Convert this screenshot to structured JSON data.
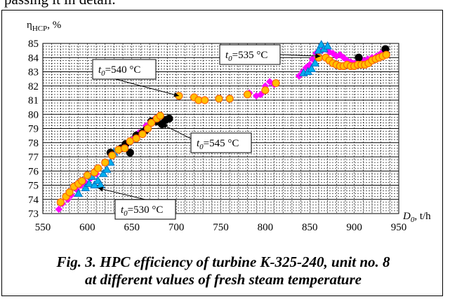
{
  "page_text": "passing it in detail.",
  "caption": {
    "line1": "Fig. 3. HPC efficiency of turbine K-325-240, unit no. 8",
    "line2": "at different values of fresh steam temperature"
  },
  "chart_data": {
    "type": "scatter",
    "title": "",
    "ylabel": "η_HCP, %",
    "xlabel": "D_0, t/h",
    "xlim": [
      550,
      950
    ],
    "ylim": [
      73,
      85
    ],
    "x_ticks": [
      550,
      600,
      650,
      700,
      750,
      800,
      850,
      900,
      950
    ],
    "y_ticks": [
      73,
      74,
      75,
      76,
      77,
      78,
      79,
      80,
      81,
      82,
      83,
      84,
      85
    ],
    "grid": true,
    "annotations": [
      {
        "text": "t0=540 °C",
        "t": "t",
        "sub": "0",
        "rest": "=540 °C",
        "at": [
          703,
          81.3
        ]
      },
      {
        "text": "t0=535 °C",
        "t": "t",
        "sub": "0",
        "rest": "=535 °C",
        "at": [
          862,
          84.1
        ]
      },
      {
        "text": "t0=545 °C",
        "t": "t",
        "sub": "0",
        "rest": "=545 °C",
        "at": [
          684,
          79.3
        ]
      },
      {
        "text": "t0=530 °C",
        "t": "t",
        "sub": "0",
        "rest": "=530 °C",
        "at": [
          612,
          74.8
        ]
      }
    ],
    "series": [
      {
        "color": "#FF00FF",
        "marker": "diamond",
        "points": [
          [
            568,
            73.3
          ],
          [
            572,
            73.7
          ],
          [
            578,
            74.0
          ],
          [
            582,
            74.3
          ],
          [
            588,
            74.7
          ],
          [
            593,
            75.0
          ],
          [
            598,
            75.2
          ],
          [
            604,
            75.5
          ],
          [
            610,
            75.8
          ],
          [
            638,
            77.6
          ],
          [
            645,
            78.0
          ],
          [
            652,
            78.3
          ],
          [
            658,
            78.7
          ],
          [
            666,
            79.2
          ],
          [
            672,
            79.5
          ],
          [
            676,
            79.7
          ],
          [
            680,
            79.8
          ],
          [
            782,
            81.5
          ],
          [
            790,
            81.3
          ],
          [
            795,
            81.4
          ],
          [
            800,
            82.0
          ],
          [
            805,
            82.3
          ],
          [
            810,
            82.1
          ],
          [
            838,
            82.7
          ],
          [
            842,
            83.0
          ],
          [
            846,
            83.3
          ],
          [
            850,
            83.5
          ],
          [
            853,
            83.9
          ],
          [
            857,
            84.3
          ],
          [
            860,
            84.4
          ],
          [
            864,
            84.5
          ],
          [
            868,
            84.6
          ],
          [
            872,
            84.4
          ],
          [
            876,
            84.3
          ],
          [
            880,
            84.1
          ],
          [
            884,
            84.2
          ],
          [
            888,
            84.0
          ],
          [
            892,
            83.8
          ],
          [
            896,
            83.7
          ],
          [
            900,
            83.6
          ],
          [
            905,
            83.7
          ],
          [
            910,
            83.8
          ],
          [
            915,
            83.9
          ],
          [
            920,
            84.0
          ],
          [
            925,
            84.1
          ],
          [
            930,
            84.3
          ],
          [
            935,
            84.2
          ]
        ]
      },
      {
        "color": "#00B0F0",
        "marker": "triangle",
        "points": [
          [
            590,
            74.4
          ],
          [
            598,
            74.8
          ],
          [
            602,
            75.1
          ],
          [
            605,
            75.6
          ],
          [
            608,
            75.0
          ],
          [
            612,
            75.3
          ],
          [
            615,
            75.0
          ],
          [
            618,
            75.8
          ],
          [
            622,
            76.1
          ],
          [
            626,
            76.6
          ],
          [
            630,
            77.3
          ],
          [
            843,
            82.9
          ],
          [
            848,
            83.0
          ],
          [
            852,
            83.2
          ],
          [
            856,
            83.6
          ],
          [
            860,
            84.5
          ],
          [
            863,
            84.9
          ],
          [
            866,
            84.6
          ],
          [
            870,
            84.8
          ]
        ]
      },
      {
        "color": "#000000",
        "marker": "circle",
        "points": [
          [
            626,
            77.3
          ],
          [
            638,
            77.6
          ],
          [
            643,
            77.9
          ],
          [
            648,
            77.3
          ],
          [
            655,
            78.5
          ],
          [
            662,
            78.7
          ],
          [
            666,
            78.9
          ],
          [
            672,
            79.5
          ],
          [
            678,
            79.5
          ],
          [
            684,
            79.3
          ],
          [
            688,
            79.6
          ],
          [
            692,
            79.7
          ],
          [
            905,
            84.0
          ],
          [
            935,
            84.6
          ]
        ]
      },
      {
        "color": "#FFC000",
        "marker": "circle",
        "points": [
          [
            570,
            73.8
          ],
          [
            576,
            74.2
          ],
          [
            580,
            74.5
          ],
          [
            585,
            74.9
          ],
          [
            590,
            75.1
          ],
          [
            594,
            75.3
          ],
          [
            600,
            75.7
          ],
          [
            608,
            75.9
          ],
          [
            612,
            76.2
          ],
          [
            620,
            76.6
          ],
          [
            628,
            77.1
          ],
          [
            635,
            77.5
          ],
          [
            642,
            77.6
          ],
          [
            648,
            78.1
          ],
          [
            655,
            78.3
          ],
          [
            662,
            78.6
          ],
          [
            668,
            79.0
          ],
          [
            672,
            79.4
          ],
          [
            678,
            79.7
          ],
          [
            682,
            79.9
          ],
          [
            703,
            81.3
          ],
          [
            720,
            81.2
          ],
          [
            725,
            81.0
          ],
          [
            732,
            81.0
          ],
          [
            748,
            81.1
          ],
          [
            760,
            81.1
          ],
          [
            780,
            81.4
          ],
          [
            800,
            81.7
          ],
          [
            812,
            82.2
          ],
          [
            860,
            84.0
          ],
          [
            868,
            84.0
          ],
          [
            872,
            83.8
          ],
          [
            876,
            83.6
          ],
          [
            880,
            83.5
          ],
          [
            884,
            83.4
          ],
          [
            888,
            83.4
          ],
          [
            892,
            83.5
          ],
          [
            896,
            83.4
          ],
          [
            900,
            83.4
          ],
          [
            904,
            83.5
          ],
          [
            908,
            83.5
          ],
          [
            912,
            83.5
          ],
          [
            916,
            83.6
          ],
          [
            920,
            83.8
          ],
          [
            924,
            83.9
          ],
          [
            928,
            84.0
          ],
          [
            932,
            84.1
          ],
          [
            936,
            84.2
          ]
        ]
      }
    ]
  }
}
